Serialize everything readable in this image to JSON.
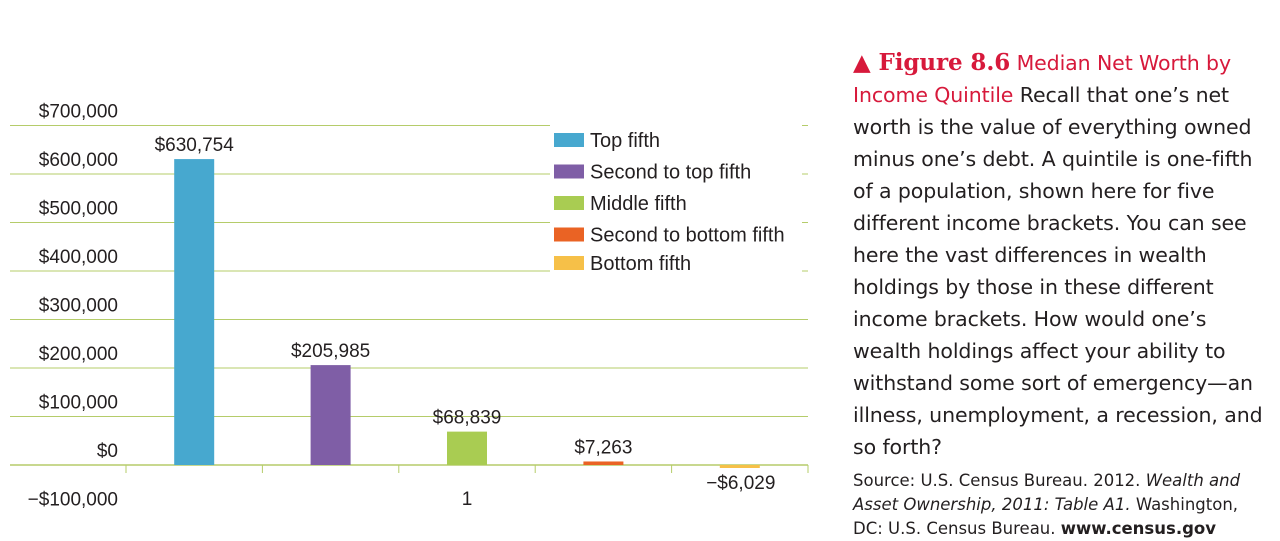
{
  "chart_data": {
    "type": "bar",
    "categories": [
      "1"
    ],
    "series": [
      {
        "name": "Top fifth",
        "values": [
          630754
        ],
        "label": "$630,754",
        "color": "#47a8cf"
      },
      {
        "name": "Second to top fifth",
        "values": [
          205985
        ],
        "label": "$205,985",
        "color": "#7f5ea6"
      },
      {
        "name": "Middle fifth",
        "values": [
          68839
        ],
        "label": "$68,839",
        "color": "#a9cc52"
      },
      {
        "name": "Second to bottom fifth",
        "values": [
          7263
        ],
        "label": "$7,263",
        "color": "#ea6324"
      },
      {
        "name": "Bottom fifth",
        "values": [
          -6029
        ],
        "label": "−$6,029",
        "color": "#f6c048"
      }
    ],
    "yticks": [
      {
        "value": 700000,
        "label": "$700,000"
      },
      {
        "value": 600000,
        "label": "$600,000"
      },
      {
        "value": 500000,
        "label": "$500,000"
      },
      {
        "value": 400000,
        "label": "$400,000"
      },
      {
        "value": 300000,
        "label": "$300,000"
      },
      {
        "value": 200000,
        "label": "$200,000"
      },
      {
        "value": 100000,
        "label": "$100,000"
      },
      {
        "value": 0,
        "label": "$0"
      },
      {
        "value": -100000,
        "label": "−$100,000"
      }
    ],
    "ylim": [
      -100000,
      700000
    ],
    "grid": true,
    "gridline_color": "#b5cc6a",
    "legend_position": "top-right",
    "title": "",
    "xlabel": "",
    "ylabel": ""
  },
  "caption": {
    "figure_label": "▲ Figure 8.6",
    "title": "Median Net Worth by Income Quintile",
    "body": "Recall that one’s net worth is the value of everything owned minus one’s debt. A quintile is one-fifth of a population, shown here for five different income brackets. You can see here the vast differences in wealth holdings by those in these different income brackets. How would one’s wealth holdings affect your ability to withstand some sort of emergency—an illness, unemployment, a recession, and so forth?",
    "source_prefix": "Source: U.S. Census Bureau. 2012.",
    "source_italic": "Wealth and Asset Ownership, 2011: Table A1.",
    "source_suffix": "Washington, DC: U.S. Census Bureau.",
    "source_link": "www.census.gov",
    "accent_color": "#d7193b"
  }
}
